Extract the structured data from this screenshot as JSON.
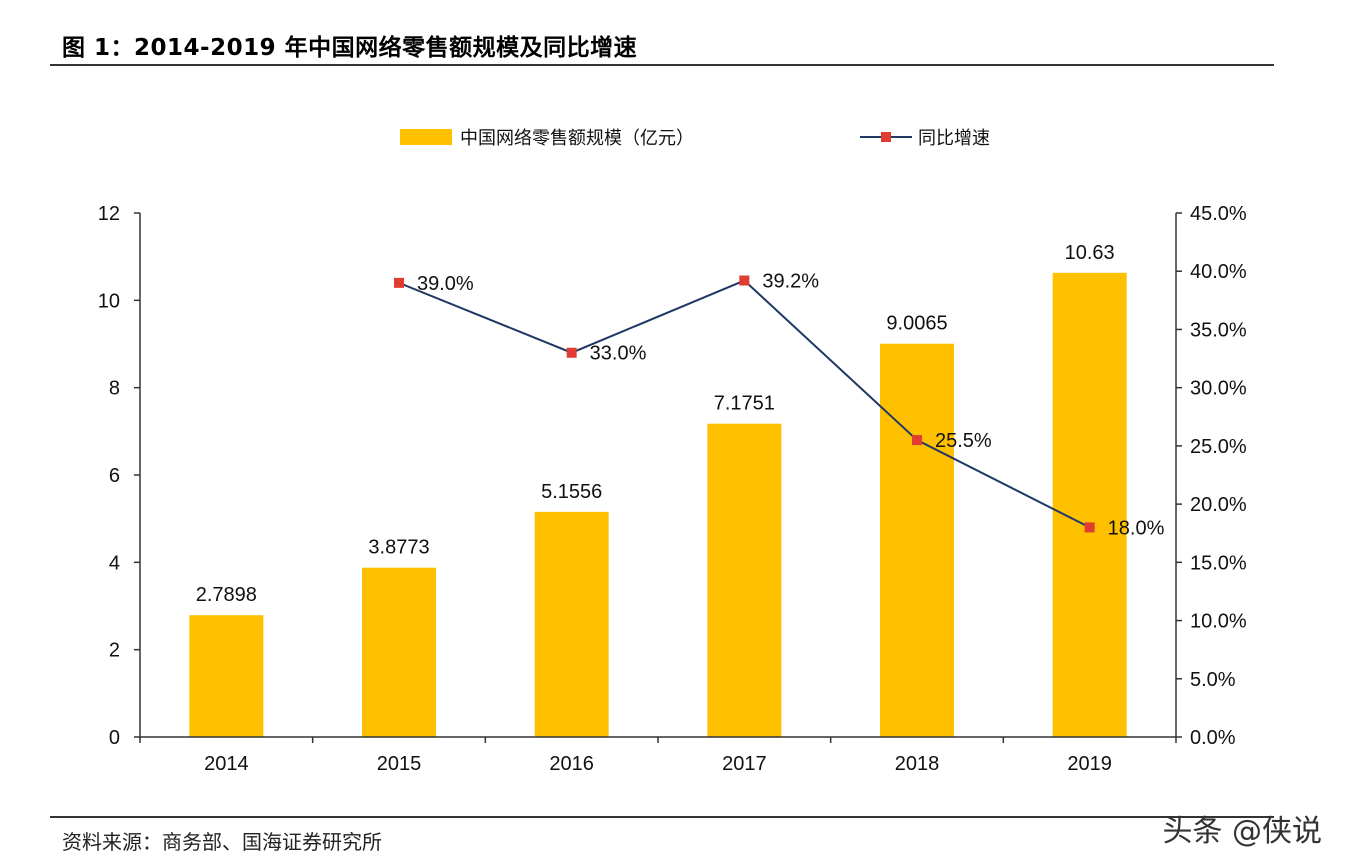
{
  "figure_title": "图 1：2014-2019 年中国网络零售额规模及同比增速",
  "source_note": "资料来源：商务部、国海证券研究所",
  "watermark": "头条 @侠说",
  "colors": {
    "bar": "#FFC000",
    "line": "#1F3864",
    "marker": "#E03C31",
    "axis": "#333333"
  },
  "chart_data": {
    "type": "bar",
    "combo_line": true,
    "categories": [
      "2014",
      "2015",
      "2016",
      "2017",
      "2018",
      "2019"
    ],
    "series": [
      {
        "name": "中国网络零售额规模（亿元）",
        "type": "bar",
        "axis": "left",
        "values": [
          2.7898,
          3.8773,
          5.1556,
          7.1751,
          9.0065,
          10.63
        ],
        "labels": [
          "2.7898",
          "3.8773",
          "5.1556",
          "7.1751",
          "9.0065",
          "10.63"
        ]
      },
      {
        "name": "同比增速",
        "type": "line",
        "axis": "right",
        "values": [
          null,
          39.0,
          33.0,
          39.2,
          25.5,
          18.0
        ],
        "labels": [
          "",
          "39.0%",
          "33.0%",
          "39.2%",
          "25.5%",
          "18.0%"
        ]
      }
    ],
    "left_axis": {
      "min": 0,
      "max": 12,
      "ticks": [
        "0",
        "2",
        "4",
        "6",
        "8",
        "10",
        "12"
      ]
    },
    "right_axis": {
      "min": 0,
      "max": 45,
      "ticks": [
        "0.0%",
        "5.0%",
        "10.0%",
        "15.0%",
        "20.0%",
        "25.0%",
        "30.0%",
        "35.0%",
        "40.0%",
        "45.0%"
      ]
    },
    "legend_position": "top",
    "grid": false
  }
}
